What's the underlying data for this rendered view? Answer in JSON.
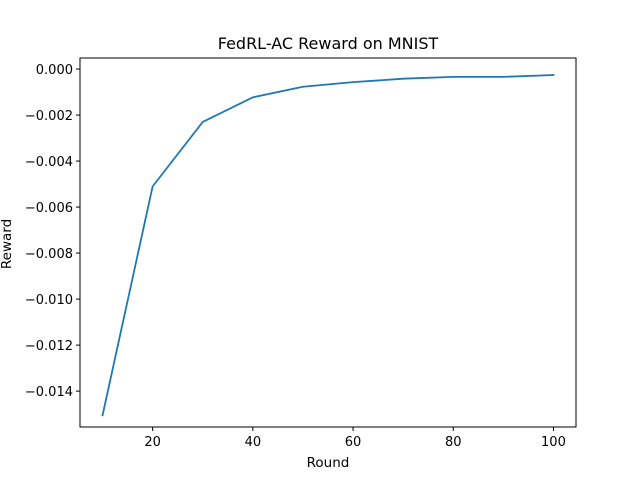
{
  "chart_data": {
    "type": "line",
    "title": "FedRL-AC Reward on MNIST",
    "xlabel": "Round",
    "ylabel": "Reward",
    "xlim": [
      5.5,
      104.5
    ],
    "ylim": [
      -0.01556,
      0.00048
    ],
    "xticks": [
      20,
      40,
      60,
      80,
      100
    ],
    "yticks": [
      0.0,
      -0.002,
      -0.004,
      -0.006,
      -0.008,
      -0.01,
      -0.012,
      -0.014
    ],
    "xtick_labels": [
      "20",
      "40",
      "60",
      "80",
      "100"
    ],
    "ytick_labels": [
      "0.000",
      "−0.002",
      "−0.004",
      "−0.006",
      "−0.008",
      "−0.010",
      "−0.012",
      "−0.014"
    ],
    "grid": false,
    "series": [
      {
        "color": "#1f77b4",
        "x": [
          10,
          20,
          30,
          40,
          50,
          60,
          70,
          80,
          90,
          100
        ],
        "y": [
          -0.01505,
          -0.0051,
          -0.0023,
          -0.00123,
          -0.00077,
          -0.00057,
          -0.00042,
          -0.00034,
          -0.00034,
          -0.00026
        ]
      }
    ]
  }
}
